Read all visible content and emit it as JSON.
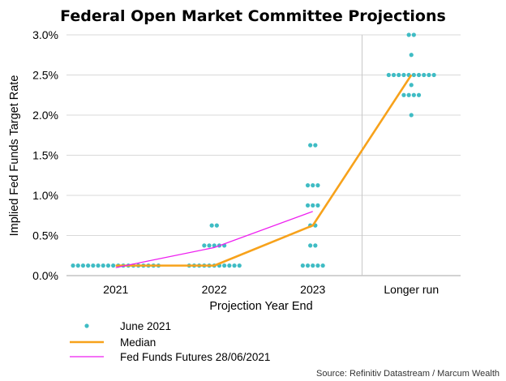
{
  "chart_data": {
    "type": "scatter",
    "title": "Federal Open Market Committee Projections",
    "xlabel": "Projection Year End",
    "ylabel": "Implied Fed Funds Target Rate",
    "categories": [
      "2021",
      "2022",
      "2023",
      "Longer run"
    ],
    "ylim": [
      0,
      3.0
    ],
    "y_ticks": [
      "0.0%",
      "0.5%",
      "1.0%",
      "1.5%",
      "2.0%",
      "2.5%",
      "3.0%"
    ],
    "y_tick_values": [
      0,
      0.5,
      1.0,
      1.5,
      2.0,
      2.5,
      3.0
    ],
    "grid": "horizontal",
    "legend_position": "bottom-left",
    "dots": {
      "name": "June 2021",
      "color": "#3fbcc4",
      "groups": [
        {
          "category": "2021",
          "values": [
            {
              "y": 0.125,
              "count": 18
            }
          ]
        },
        {
          "category": "2022",
          "values": [
            {
              "y": 0.625,
              "count": 2
            },
            {
              "y": 0.375,
              "count": 5
            },
            {
              "y": 0.125,
              "count": 11
            }
          ]
        },
        {
          "category": "2023",
          "values": [
            {
              "y": 1.625,
              "count": 2
            },
            {
              "y": 1.125,
              "count": 3
            },
            {
              "y": 0.875,
              "count": 3
            },
            {
              "y": 0.625,
              "count": 2
            },
            {
              "y": 0.375,
              "count": 2
            },
            {
              "y": 0.125,
              "count": 5
            }
          ]
        },
        {
          "category": "Longer run",
          "values": [
            {
              "y": 3.0,
              "count": 2
            },
            {
              "y": 2.75,
              "count": 1
            },
            {
              "y": 2.5,
              "count": 10
            },
            {
              "y": 2.375,
              "count": 1
            },
            {
              "y": 2.25,
              "count": 4
            },
            {
              "y": 2.0,
              "count": 1
            }
          ]
        }
      ]
    },
    "median": {
      "name": "Median",
      "color": "#f7a21b",
      "points": [
        {
          "category": "2021",
          "y": 0.125
        },
        {
          "category": "2022",
          "y": 0.125
        },
        {
          "category": "2023",
          "y": 0.625
        },
        {
          "category": "Longer run",
          "y": 2.5
        }
      ]
    },
    "futures": {
      "name": "Fed Funds Futures 28/06/2021",
      "color": "#ee1ef0",
      "points": [
        {
          "category": "2021",
          "y": 0.1
        },
        {
          "category": "2022",
          "y": 0.35
        },
        {
          "category": "2023",
          "y": 0.8
        }
      ]
    },
    "source": "Source: Refinitiv Datastream / Marcum Wealth"
  }
}
